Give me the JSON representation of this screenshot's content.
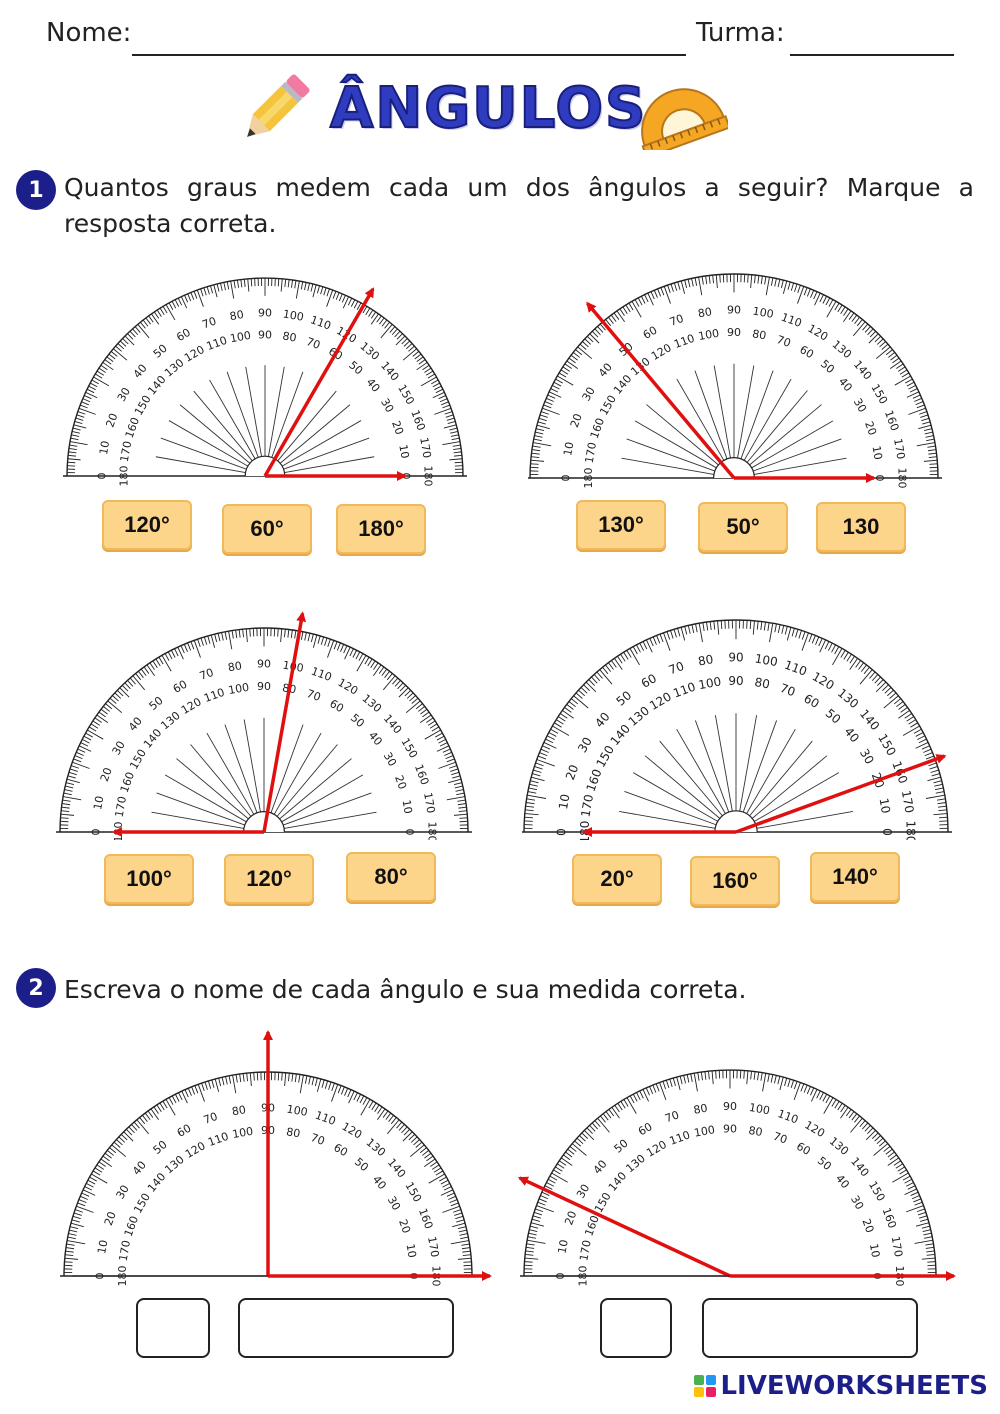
{
  "header": {
    "name_label": "Nome:",
    "class_label": "Turma:"
  },
  "title": "ÂNGULOS",
  "q1": {
    "number": "1",
    "text": "Quantos graus medem cada um dos ângulos a seguir? Marque a resposta correta.",
    "items": [
      {
        "angle": 60,
        "options": [
          "120°",
          "60°",
          "180°"
        ]
      },
      {
        "angle": 130,
        "options": [
          "130°",
          "50°",
          "130"
        ]
      },
      {
        "angle": 100,
        "options": [
          "100°",
          "120°",
          "80°"
        ]
      },
      {
        "angle": 160,
        "options": [
          "20°",
          "160°",
          "140°"
        ]
      }
    ]
  },
  "q2": {
    "number": "2",
    "text": "Escreva o nome de cada ângulo e sua medida correta.",
    "items": [
      {
        "angle": 90
      },
      {
        "angle": 155
      }
    ]
  },
  "footer": {
    "brand": "LIVEWORKSHEETS"
  },
  "colors": {
    "arrow": "#e01010",
    "option_bg": "#fdd58a",
    "title": "#2f3cc0",
    "badge": "#1c1f8a"
  },
  "icons": [
    "pencil-icon",
    "protractor-icon"
  ]
}
